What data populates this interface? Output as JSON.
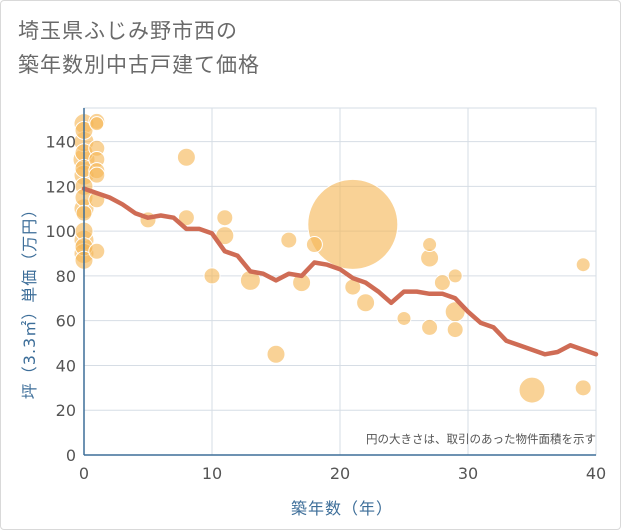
{
  "header": {
    "title_line1": "埼玉県ふじみ野市西の",
    "title_line2": "築年数別中古戸建て価格"
  },
  "chart_data": {
    "type": "scatter",
    "title": "埼玉県ふじみ野市西の築年数別中古戸建て価格",
    "xlabel": "築年数（年）",
    "ylabel": "坪（3.3㎡）単価（万円）",
    "xlim": [
      0,
      40
    ],
    "ylim": [
      0,
      155
    ],
    "x_ticks": [
      "0",
      "10",
      "20",
      "30",
      "40"
    ],
    "y_ticks": [
      "0",
      "20",
      "40",
      "60",
      "80",
      "100",
      "120",
      "140"
    ],
    "note": "円の大きさは、取引のあった物件面積を示す",
    "colors": {
      "bubble": "#f5b755",
      "line": "#cf6c55",
      "axis": "#3d6e99"
    },
    "points": [
      {
        "x": 0,
        "y": 148,
        "s": 10
      },
      {
        "x": 0,
        "y": 145,
        "s": 9
      },
      {
        "x": 0,
        "y": 140,
        "s": 10
      },
      {
        "x": 0,
        "y": 135,
        "s": 9
      },
      {
        "x": 0,
        "y": 132,
        "s": 11
      },
      {
        "x": 0,
        "y": 128,
        "s": 9
      },
      {
        "x": 0,
        "y": 125,
        "s": 10
      },
      {
        "x": 0,
        "y": 120,
        "s": 9
      },
      {
        "x": 0,
        "y": 115,
        "s": 9
      },
      {
        "x": 0,
        "y": 110,
        "s": 10
      },
      {
        "x": 0,
        "y": 108,
        "s": 8
      },
      {
        "x": 0,
        "y": 100,
        "s": 9
      },
      {
        "x": 0,
        "y": 96,
        "s": 10
      },
      {
        "x": 0,
        "y": 93,
        "s": 9
      },
      {
        "x": 0,
        "y": 90,
        "s": 10
      },
      {
        "x": 0,
        "y": 87,
        "s": 9
      },
      {
        "x": 1,
        "y": 149,
        "s": 8
      },
      {
        "x": 1,
        "y": 148,
        "s": 7
      },
      {
        "x": 1,
        "y": 137,
        "s": 8
      },
      {
        "x": 1,
        "y": 132,
        "s": 8
      },
      {
        "x": 1,
        "y": 127,
        "s": 8
      },
      {
        "x": 1,
        "y": 125,
        "s": 8
      },
      {
        "x": 1,
        "y": 114,
        "s": 8
      },
      {
        "x": 1,
        "y": 91,
        "s": 8
      },
      {
        "x": 5,
        "y": 105,
        "s": 8
      },
      {
        "x": 8,
        "y": 133,
        "s": 9
      },
      {
        "x": 8,
        "y": 106,
        "s": 8
      },
      {
        "x": 10,
        "y": 80,
        "s": 8
      },
      {
        "x": 11,
        "y": 106,
        "s": 8
      },
      {
        "x": 11,
        "y": 98,
        "s": 9
      },
      {
        "x": 13,
        "y": 78,
        "s": 10
      },
      {
        "x": 15,
        "y": 45,
        "s": 9
      },
      {
        "x": 16,
        "y": 96,
        "s": 8
      },
      {
        "x": 17,
        "y": 77,
        "s": 9
      },
      {
        "x": 18,
        "y": 94,
        "s": 8
      },
      {
        "x": 21,
        "y": 103,
        "s": 45
      },
      {
        "x": 21,
        "y": 75,
        "s": 8
      },
      {
        "x": 22,
        "y": 68,
        "s": 9
      },
      {
        "x": 25,
        "y": 61,
        "s": 7
      },
      {
        "x": 27,
        "y": 94,
        "s": 7
      },
      {
        "x": 27,
        "y": 88,
        "s": 9
      },
      {
        "x": 27,
        "y": 57,
        "s": 8
      },
      {
        "x": 28,
        "y": 77,
        "s": 8
      },
      {
        "x": 29,
        "y": 80,
        "s": 7
      },
      {
        "x": 29,
        "y": 64,
        "s": 10
      },
      {
        "x": 29,
        "y": 56,
        "s": 8
      },
      {
        "x": 35,
        "y": 29,
        "s": 13
      },
      {
        "x": 39,
        "y": 85,
        "s": 7
      },
      {
        "x": 39,
        "y": 30,
        "s": 8
      }
    ],
    "trend": {
      "x": [
        0,
        1,
        2,
        3,
        4,
        5,
        6,
        7,
        8,
        9,
        10,
        11,
        12,
        13,
        14,
        15,
        16,
        17,
        18,
        19,
        20,
        21,
        22,
        23,
        24,
        25,
        26,
        27,
        28,
        29,
        30,
        31,
        32,
        33,
        34,
        35,
        36,
        37,
        38,
        39,
        40
      ],
      "y": [
        119,
        117,
        115,
        112,
        108,
        106,
        107,
        106,
        101,
        101,
        99,
        91,
        89,
        82,
        81,
        78,
        81,
        80,
        86,
        85,
        83,
        79,
        77,
        73,
        68,
        73,
        73,
        72,
        72,
        70,
        64,
        59,
        57,
        51,
        49,
        47,
        45,
        46,
        49,
        47,
        45
      ]
    }
  }
}
